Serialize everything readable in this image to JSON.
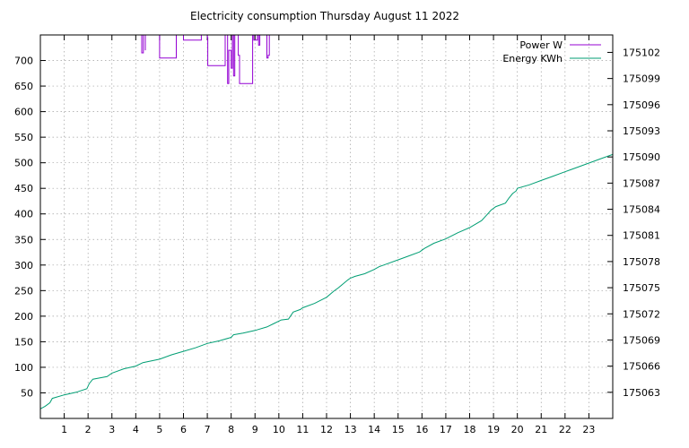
{
  "chart_data": {
    "type": "line",
    "title": "Electricity consumption Thursday August 11 2022",
    "xlabel": "",
    "ylabel": "",
    "y2label": "",
    "xlim": [
      0,
      24
    ],
    "ylim": [
      0,
      750
    ],
    "y2lim": [
      175060,
      175104
    ],
    "x_ticks": [
      1,
      2,
      3,
      4,
      5,
      6,
      7,
      8,
      9,
      10,
      11,
      12,
      13,
      14,
      15,
      16,
      17,
      18,
      19,
      20,
      21,
      22,
      23
    ],
    "y_ticks": [
      50,
      100,
      150,
      200,
      250,
      300,
      350,
      400,
      450,
      500,
      550,
      600,
      650,
      700
    ],
    "y2_ticks": [
      175063,
      175066,
      175069,
      175072,
      175075,
      175078,
      175081,
      175084,
      175087,
      175090,
      175093,
      175096,
      175099,
      175102
    ],
    "grid": true,
    "legend_position": "top-right",
    "colors": {
      "power": "#9400d3",
      "energy": "#009e73"
    },
    "series": [
      {
        "name": "Power W",
        "axis": "left",
        "x": [
          4.25,
          4.25,
          4.32,
          4.32,
          4.4,
          4.4,
          4.4,
          4.4,
          5.0,
          5.0,
          5.02,
          5.02,
          5.7,
          5.7,
          5.75,
          5.75,
          6.0,
          6.0,
          6.05,
          6.05,
          6.75,
          6.75,
          7.0,
          7.0,
          7.02,
          7.02,
          7.75,
          7.75,
          7.85,
          7.85,
          7.9,
          7.9,
          8.0,
          8.0,
          8.05,
          8.05,
          8.1,
          8.1,
          8.15,
          8.15,
          8.3,
          8.3,
          8.35,
          8.35,
          8.9,
          8.9,
          8.95,
          8.95,
          9.1,
          9.1,
          9.15,
          9.15,
          9.2,
          9.2,
          9.25,
          9.25,
          9.3,
          9.3,
          9.5,
          9.5,
          9.55,
          9.55,
          9.6,
          9.6,
          9.65,
          9.65
        ],
        "values": [
          760,
          715,
          715,
          760,
          760,
          720,
          720,
          760,
          760,
          705,
          705,
          705,
          705,
          760,
          760,
          760,
          760,
          740,
          740,
          740,
          740,
          760,
          760,
          745,
          745,
          690,
          690,
          760,
          760,
          655,
          655,
          720,
          720,
          685,
          685,
          760,
          760,
          670,
          670,
          760,
          760,
          710,
          710,
          655,
          655,
          760,
          760,
          740,
          740,
          760,
          760,
          730,
          730,
          760,
          760,
          760,
          760,
          760,
          760,
          705,
          705,
          710,
          710,
          760,
          760,
          760
        ]
      },
      {
        "name": "Energy KWh",
        "axis": "right",
        "x": [
          0,
          0.2,
          0.4,
          0.5,
          1,
          1.5,
          1.95,
          2.05,
          2.2,
          2.8,
          3,
          3.5,
          4,
          4.3,
          5,
          5.5,
          6,
          6.5,
          7,
          7.5,
          8,
          8.1,
          8.5,
          9,
          9.5,
          9.8,
          10.1,
          10.4,
          10.6,
          10.9,
          11,
          11.5,
          12,
          12.3,
          12.5,
          12.9,
          13,
          13.2,
          13.6,
          14,
          14.2,
          14.5,
          15,
          15.4,
          15.9,
          16.1,
          16.5,
          17,
          17.5,
          18,
          18.5,
          18.7,
          18.9,
          19.1,
          19.5,
          19.65,
          19.8,
          19.95,
          20,
          20.5,
          21,
          21.5,
          22,
          22.5,
          23,
          23.5,
          24
        ],
        "values": [
          175061.1,
          175061.4,
          175061.8,
          175062.3,
          175062.7,
          175063.0,
          175063.4,
          175064.0,
          175064.5,
          175064.8,
          175065.2,
          175065.7,
          175066.0,
          175066.4,
          175066.8,
          175067.3,
          175067.7,
          175068.1,
          175068.6,
          175068.9,
          175069.3,
          175069.6,
          175069.8,
          175070.1,
          175070.5,
          175070.9,
          175071.3,
          175071.4,
          175072.2,
          175072.5,
          175072.7,
          175073.2,
          175073.9,
          175074.6,
          175075.0,
          175075.9,
          175076.1,
          175076.3,
          175076.6,
          175077.1,
          175077.4,
          175077.7,
          175078.2,
          175078.6,
          175079.1,
          175079.5,
          175080.1,
          175080.6,
          175081.3,
          175081.9,
          175082.7,
          175083.3,
          175083.9,
          175084.3,
          175084.7,
          175085.3,
          175085.8,
          175086.1,
          175086.4,
          175086.8,
          175087.3,
          175087.8,
          175088.3,
          175088.8,
          175089.3,
          175089.8,
          175090.3
        ]
      }
    ]
  }
}
